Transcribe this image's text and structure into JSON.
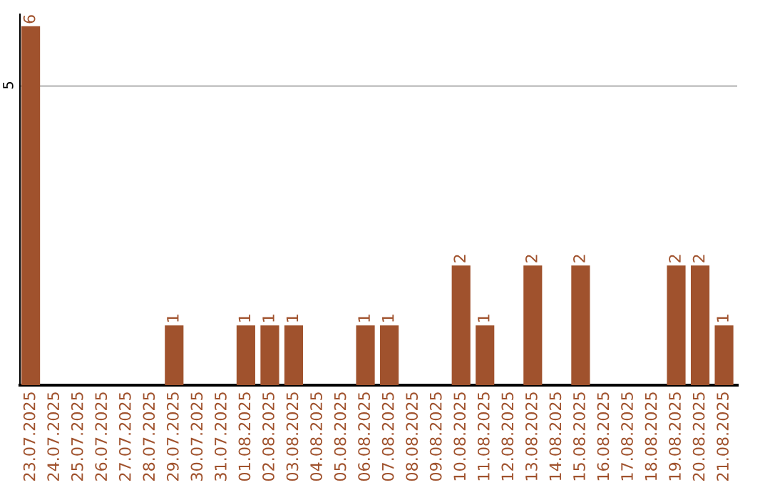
{
  "chart_data": {
    "type": "bar",
    "categories": [
      "23.07.2025",
      "24.07.2025",
      "25.07.2025",
      "26.07.2025",
      "27.07.2025",
      "28.07.2025",
      "29.07.2025",
      "30.07.2025",
      "31.07.2025",
      "01.08.2025",
      "02.08.2025",
      "03.08.2025",
      "04.08.2025",
      "05.08.2025",
      "06.08.2025",
      "07.08.2025",
      "08.08.2025",
      "09.08.2025",
      "10.08.2025",
      "11.08.2025",
      "12.08.2025",
      "13.08.2025",
      "14.08.2025",
      "15.08.2025",
      "16.08.2025",
      "17.08.2025",
      "18.08.2025",
      "19.08.2025",
      "20.08.2025",
      "21.08.2025"
    ],
    "values": [
      6,
      0,
      0,
      0,
      0,
      0,
      1,
      0,
      0,
      1,
      1,
      1,
      0,
      0,
      1,
      1,
      0,
      0,
      2,
      1,
      0,
      2,
      0,
      2,
      0,
      0,
      0,
      2,
      2,
      1
    ],
    "value_labels": [
      "6",
      null,
      null,
      null,
      null,
      null,
      "1",
      null,
      null,
      "1",
      "1",
      "1",
      null,
      null,
      "1",
      "1",
      null,
      null,
      "2",
      "1",
      null,
      "2",
      null,
      "2",
      null,
      null,
      null,
      "2",
      "2",
      "1"
    ],
    "color": "#a0522d",
    "ylim": [
      0,
      6.2
    ],
    "yticks": [
      5
    ],
    "grid": "y",
    "legend": false
  }
}
